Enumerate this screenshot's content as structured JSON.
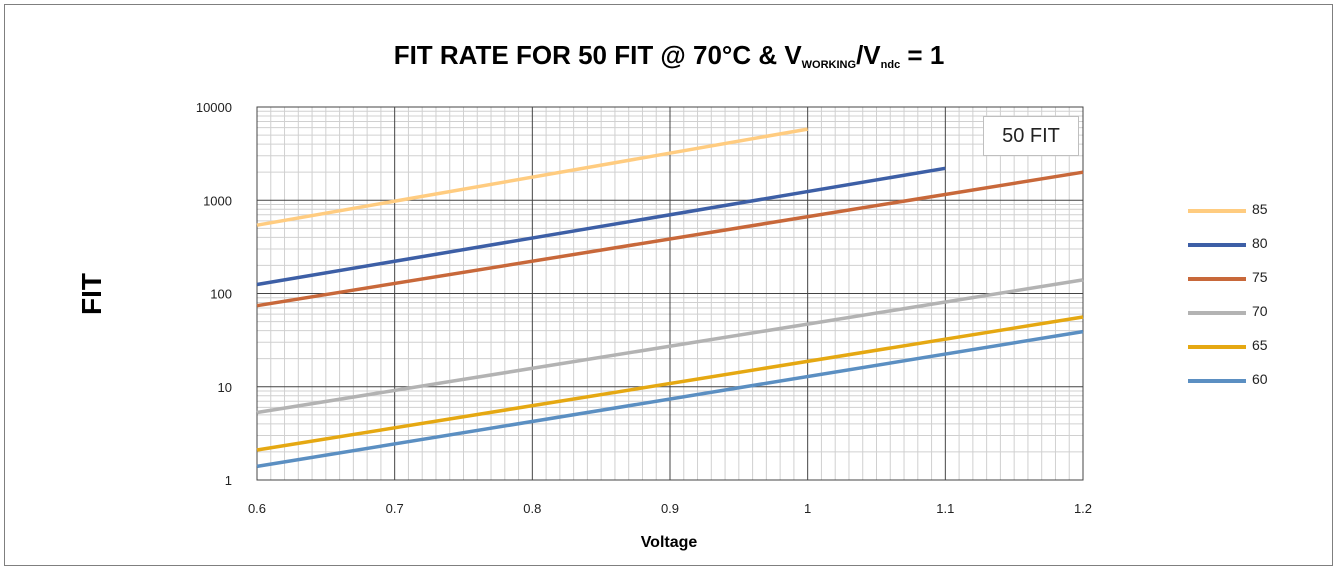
{
  "chart_data": {
    "type": "line",
    "title_main": "FIT RATE FOR 50 FIT @ 70°C & V",
    "title_sub1": "WORKING",
    "title_mid": "/V",
    "title_sub2": "ndc",
    "title_end": " = 1",
    "xlabel": "Voltage",
    "ylabel": "FIT",
    "annotation": "50 FIT",
    "xlim": [
      0.6,
      1.2
    ],
    "ylim": [
      1,
      10000
    ],
    "yscale": "log",
    "grid": true,
    "legend_position": "right",
    "x_ticks": [
      "0.6",
      "0.7",
      "0.8",
      "0.9",
      "1",
      "1.1",
      "1.2"
    ],
    "y_ticks": [
      "1",
      "10",
      "100",
      "1000",
      "10000"
    ],
    "series": [
      {
        "name": "85",
        "color": "#FFCC80",
        "x": [
          0.6,
          1.0
        ],
        "y": [
          540,
          5800
        ]
      },
      {
        "name": "80",
        "color": "#3D5FA6",
        "x": [
          0.6,
          1.1
        ],
        "y": [
          125,
          2200
        ]
      },
      {
        "name": "75",
        "color": "#C8683A",
        "x": [
          0.6,
          1.2
        ],
        "y": [
          74,
          2000
        ]
      },
      {
        "name": "70",
        "color": "#B3B3B3",
        "x": [
          0.6,
          1.2
        ],
        "y": [
          5.3,
          140
        ]
      },
      {
        "name": "65",
        "color": "#E5A812",
        "x": [
          0.6,
          1.2
        ],
        "y": [
          2.1,
          56
        ]
      },
      {
        "name": "60",
        "color": "#5B8FC2",
        "x": [
          0.6,
          1.2
        ],
        "y": [
          1.4,
          39
        ]
      }
    ]
  }
}
